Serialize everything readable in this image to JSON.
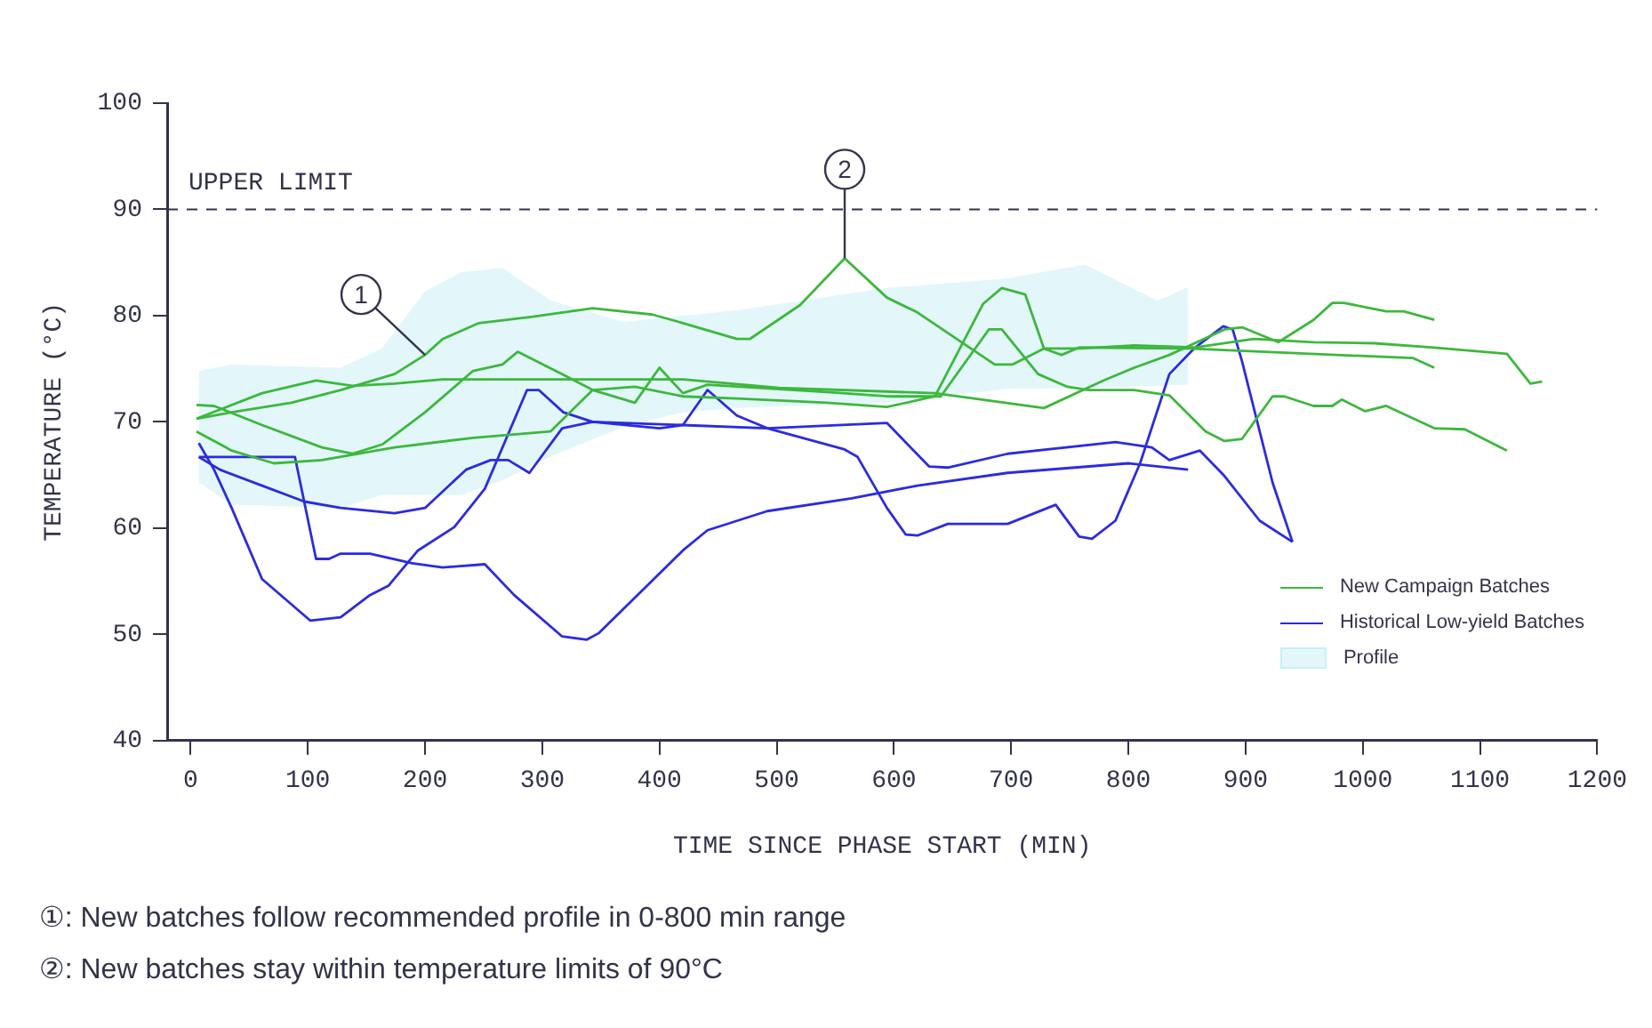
{
  "chart_data": {
    "type": "line",
    "xlabel": "TIME SINCE PHASE START (MIN)",
    "ylabel": "TEMPERATURE (°C)",
    "xlim": [
      -20,
      1200
    ],
    "xticks": [
      0,
      100,
      200,
      300,
      400,
      500,
      600,
      700,
      800,
      900,
      1000,
      1100,
      1200
    ],
    "ylim": [
      40,
      100
    ],
    "yticks": [
      40,
      50,
      60,
      70,
      80,
      90,
      100
    ],
    "legend": "bottom right",
    "ref_lines": [
      {
        "axis": "y",
        "value": 90,
        "label": "UPPER LIMIT",
        "color": "#33334a",
        "line_style": "dashed"
      }
    ],
    "annotations": [
      {
        "text": "1",
        "x": 200,
        "y": 76.3
      },
      {
        "text": "2",
        "x": 558,
        "y": 85.4
      },
      "①: New batches follow recommended profile in 0-800 min range",
      "②: New batches stay within temperature limits of 90°C"
    ],
    "series": [
      {
        "name": "New Campaign Batches",
        "color": "#3cb83c",
        "x": [
          5,
          35,
          86,
          128,
          174,
          200,
          215,
          246,
          292,
          343,
          394,
          420,
          466,
          477,
          520,
          558,
          594,
          620,
          686,
          701,
          728,
          758,
          805,
          856,
          907,
          958,
          1010,
          1061,
          1123,
          1143,
          1153
        ],
        "values": [
          70.3,
          70.9,
          71.8,
          73.0,
          74.5,
          76.3,
          77.8,
          79.3,
          79.9,
          80.7,
          80.1,
          79.3,
          77.8,
          77.8,
          81.0,
          85.4,
          81.7,
          80.3,
          75.4,
          75.4,
          76.9,
          76.9,
          77.2,
          77.0,
          77.8,
          77.5,
          77.4,
          77.0,
          76.4,
          73.6,
          73.8
        ]
      },
      {
        "color": "#3cb83c",
        "x": [
          5,
          61,
          107,
          138,
          174,
          215,
          420,
          502,
          635,
          728,
          779,
          805,
          835,
          882,
          897,
          928,
          958,
          974,
          984,
          1020,
          1035,
          1061
        ],
        "values": [
          70.3,
          72.7,
          73.9,
          73.4,
          73.6,
          74.0,
          74.0,
          73.2,
          72.7,
          71.3,
          73.9,
          75.1,
          76.3,
          78.7,
          78.9,
          77.5,
          79.6,
          81.2,
          81.2,
          80.4,
          80.4,
          79.6
        ]
      },
      {
        "color": "#3cb83c",
        "x": [
          5,
          35,
          71,
          112,
          174,
          241,
          307,
          343,
          379,
          420,
          466,
          543,
          594,
          635,
          676,
          692,
          712,
          728,
          743,
          758,
          851,
          1043,
          1061
        ],
        "values": [
          69.1,
          67.3,
          66.1,
          66.4,
          67.6,
          68.5,
          69.1,
          73.0,
          73.3,
          72.4,
          72.2,
          71.8,
          71.4,
          72.4,
          81.1,
          82.6,
          82.0,
          76.9,
          76.3,
          77.0,
          76.9,
          76.0,
          75.1
        ]
      },
      {
        "color": "#3cb83c",
        "x": [
          5,
          20,
          61,
          112,
          138,
          164,
          200,
          241,
          266,
          279,
          317,
          343,
          379,
          400,
          420,
          441,
          543,
          594,
          640,
          681,
          692,
          723,
          748,
          766,
          805,
          835,
          866,
          882,
          897,
          923,
          933,
          958,
          974,
          982,
          1002,
          1020,
          1061,
          1087,
          1123
        ],
        "values": [
          71.6,
          71.5,
          69.7,
          67.6,
          67.0,
          67.9,
          70.9,
          74.8,
          75.4,
          76.6,
          74.5,
          73.0,
          71.8,
          75.1,
          72.7,
          73.5,
          72.8,
          72.4,
          72.4,
          78.7,
          78.7,
          74.5,
          73.3,
          73.0,
          73.0,
          72.5,
          69.1,
          68.2,
          68.4,
          72.4,
          72.4,
          71.5,
          71.5,
          72.1,
          71.0,
          71.5,
          69.4,
          69.3,
          67.3
        ]
      },
      {
        "name": "Historical Low-yield Batches",
        "color": "#2b2be0",
        "x": [
          7,
          20,
          35,
          61,
          102,
          128,
          153,
          169,
          194,
          225,
          251,
          287,
          297,
          318,
          343,
          400,
          420,
          441,
          466,
          492,
          558,
          569,
          594,
          610,
          620,
          646,
          697,
          738,
          758,
          769,
          789,
          810,
          835,
          856,
          881,
          889,
          897,
          923,
          940
        ],
        "values": [
          68.0,
          65.5,
          61.9,
          55.2,
          51.3,
          51.6,
          53.7,
          54.6,
          57.9,
          60.1,
          63.7,
          73.0,
          73.0,
          70.9,
          70.0,
          69.4,
          69.7,
          73.0,
          70.6,
          69.4,
          67.4,
          66.7,
          61.9,
          59.4,
          59.3,
          60.4,
          60.4,
          62.2,
          59.2,
          59.0,
          60.7,
          66.1,
          74.5,
          76.9,
          79.0,
          78.7,
          75.7,
          64.3,
          58.7
        ]
      },
      {
        "color": "#2b2be0",
        "x": [
          7,
          89,
          107,
          118,
          128,
          153,
          189,
          215,
          251,
          276,
          317,
          338,
          348,
          420,
          441,
          492,
          564,
          620,
          697,
          800,
          851
        ],
        "values": [
          66.7,
          66.7,
          57.1,
          57.1,
          57.6,
          57.6,
          56.7,
          56.3,
          56.6,
          53.7,
          49.8,
          49.5,
          50.1,
          57.9,
          59.8,
          61.6,
          62.8,
          64.0,
          65.2,
          66.1,
          65.5
        ]
      },
      {
        "color": "#2b2be0",
        "x": [
          7,
          25,
          61,
          97,
          128,
          174,
          200,
          235,
          256,
          271,
          289,
          317,
          343,
          420,
          492,
          594,
          630,
          646,
          697,
          789,
          820,
          835,
          861,
          882,
          912,
          940
        ],
        "values": [
          66.7,
          65.5,
          64.0,
          62.5,
          61.9,
          61.4,
          61.9,
          65.5,
          66.4,
          66.4,
          65.2,
          69.4,
          70.0,
          69.7,
          69.4,
          69.9,
          65.8,
          65.7,
          67.0,
          68.1,
          67.6,
          66.4,
          67.3,
          64.9,
          60.7,
          58.7
        ]
      },
      {
        "name": "Profile",
        "type": "area",
        "color": "#e3f7fb",
        "x": [
          7,
          35,
          128,
          163,
          200,
          231,
          266,
          308,
          369,
          420,
          466,
          594,
          697,
          763,
          825,
          851
        ],
        "values": [
          null,
          null,
          null,
          null,
          null,
          null,
          null,
          null,
          null,
          null,
          null,
          null,
          null,
          null,
          null,
          null
        ],
        "lower": [
          64.3,
          62.2,
          61.9,
          63.1,
          63.1,
          63.1,
          64.5,
          66.8,
          69.5,
          70.9,
          71.3,
          71.8,
          73.1,
          73.2,
          73.4,
          73.5
        ],
        "upper": [
          74.8,
          75.4,
          75.1,
          76.9,
          82.3,
          84.1,
          84.5,
          81.4,
          79.4,
          80.0,
          80.5,
          82.6,
          83.5,
          84.8,
          81.4,
          82.7
        ]
      }
    ]
  }
}
